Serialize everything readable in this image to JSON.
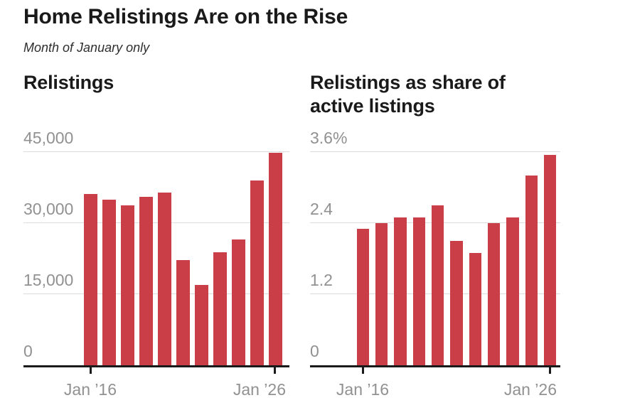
{
  "header": {
    "title": "Home Relistings Are on the Rise",
    "subtitle": "Month of January only"
  },
  "colors": {
    "bar": "#ca3e47",
    "axis": "#1a1a1a",
    "gridline": "#dcdcdc",
    "axis_label": "#919191",
    "text": "#1a1a1a"
  },
  "chart_data": [
    {
      "type": "bar",
      "title": "Relistings",
      "categories": [
        "2016",
        "2017",
        "2018",
        "2019",
        "2020",
        "2021",
        "2022",
        "2023",
        "2024",
        "2025",
        "2026"
      ],
      "values": [
        36100,
        35000,
        33700,
        35600,
        36400,
        22200,
        16900,
        23800,
        26600,
        39000,
        44800
      ],
      "ylabel": "",
      "xlabel": "",
      "ylim": [
        0,
        45000
      ],
      "grid": true,
      "legend": false,
      "y_ticks": [
        {
          "value": 45000,
          "label": "45,000"
        },
        {
          "value": 30000,
          "label": "30,000"
        },
        {
          "value": 15000,
          "label": "15,000"
        },
        {
          "value": 0,
          "label": "0"
        }
      ],
      "x_ticks": [
        {
          "category": "2016",
          "label": "Jan ’16"
        },
        {
          "category": "2026",
          "label": "Jan ’26"
        }
      ]
    },
    {
      "type": "bar",
      "title": "Relistings as share of active listings",
      "categories": [
        "2016",
        "2017",
        "2018",
        "2019",
        "2020",
        "2021",
        "2022",
        "2023",
        "2024",
        "2025",
        "2026"
      ],
      "values": [
        2.3,
        2.4,
        2.5,
        2.5,
        2.7,
        2.1,
        1.9,
        2.4,
        2.5,
        3.2,
        3.55
      ],
      "ylabel": "",
      "xlabel": "",
      "ylim": [
        0,
        3.6
      ],
      "grid": true,
      "legend": false,
      "y_ticks": [
        {
          "value": 3.6,
          "label": "3.6%"
        },
        {
          "value": 2.4,
          "label": "2.4"
        },
        {
          "value": 1.2,
          "label": "1.2"
        },
        {
          "value": 0,
          "label": "0"
        }
      ],
      "x_ticks": [
        {
          "category": "2016",
          "label": "Jan ’16"
        },
        {
          "category": "2026",
          "label": "Jan ’26"
        }
      ]
    }
  ]
}
